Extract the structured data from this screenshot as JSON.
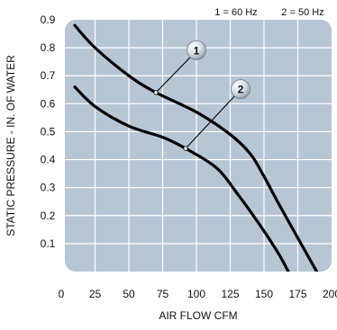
{
  "chart_data": {
    "type": "line",
    "title": "",
    "xlabel": "AIR FLOW CFM",
    "ylabel": "STATIC PRESSURE - IN. OF WATER",
    "legend_text": [
      "1 = 60 Hz",
      "2 = 50 Hz"
    ],
    "legend_placement": "top-right",
    "grid": true,
    "xlim": [
      0,
      200
    ],
    "ylim": [
      0,
      0.9
    ],
    "x_ticks": [
      {
        "value": 0,
        "label": "0"
      },
      {
        "value": 25,
        "label": "25"
      },
      {
        "value": 50,
        "label": "50"
      },
      {
        "value": 75,
        "label": "75"
      },
      {
        "value": 100,
        "label": "100"
      },
      {
        "value": 125,
        "label": "125"
      },
      {
        "value": 150,
        "label": "150"
      },
      {
        "value": 175,
        "label": "175"
      },
      {
        "value": 200,
        "label": "200"
      }
    ],
    "y_ticks": [
      {
        "value": 0.1,
        "label": "0.1"
      },
      {
        "value": 0.2,
        "label": "0.2"
      },
      {
        "value": 0.3,
        "label": "0.3"
      },
      {
        "value": 0.4,
        "label": "0.4"
      },
      {
        "value": 0.5,
        "label": "0.5"
      },
      {
        "value": 0.6,
        "label": "0.6"
      },
      {
        "value": 0.7,
        "label": "0.7"
      },
      {
        "value": 0.8,
        "label": "0.8"
      },
      {
        "value": 0.9,
        "label": "0.9"
      }
    ],
    "series": [
      {
        "marker": "1",
        "marker_point": {
          "x": 70,
          "y": 0.64
        },
        "points": [
          {
            "x": 10,
            "y": 0.88
          },
          {
            "x": 25,
            "y": 0.8
          },
          {
            "x": 50,
            "y": 0.7
          },
          {
            "x": 70,
            "y": 0.64
          },
          {
            "x": 100,
            "y": 0.57
          },
          {
            "x": 125,
            "y": 0.49
          },
          {
            "x": 140,
            "y": 0.42
          },
          {
            "x": 150,
            "y": 0.34
          },
          {
            "x": 160,
            "y": 0.25
          },
          {
            "x": 175,
            "y": 0.12
          },
          {
            "x": 189,
            "y": 0.0
          }
        ]
      },
      {
        "marker": "2",
        "marker_point": {
          "x": 92,
          "y": 0.44
        },
        "points": [
          {
            "x": 10,
            "y": 0.66
          },
          {
            "x": 25,
            "y": 0.59
          },
          {
            "x": 50,
            "y": 0.52
          },
          {
            "x": 75,
            "y": 0.48
          },
          {
            "x": 92,
            "y": 0.44
          },
          {
            "x": 115,
            "y": 0.37
          },
          {
            "x": 130,
            "y": 0.28
          },
          {
            "x": 145,
            "y": 0.18
          },
          {
            "x": 160,
            "y": 0.07
          },
          {
            "x": 168,
            "y": 0.0
          }
        ]
      }
    ]
  }
}
